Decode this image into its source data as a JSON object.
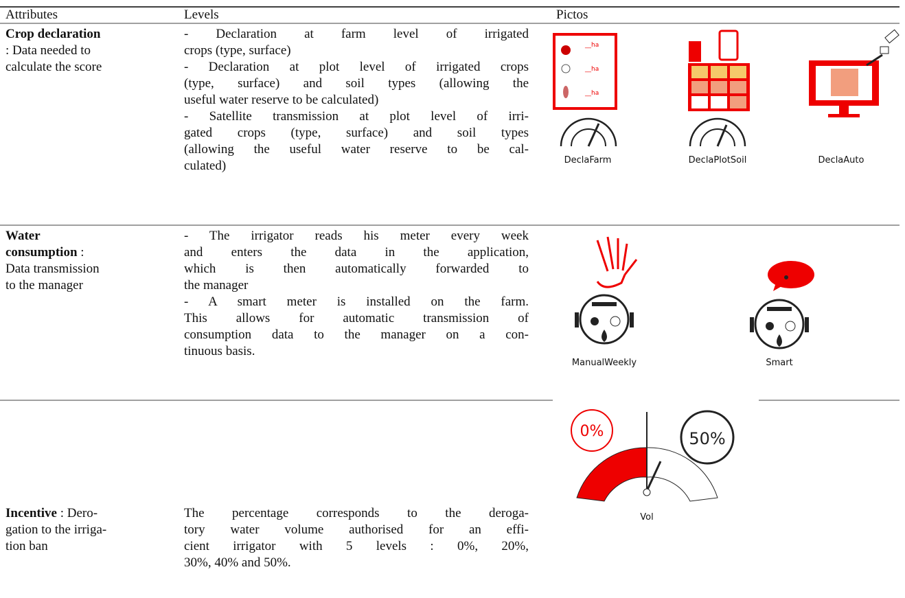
{
  "table": {
    "header": [
      "Attributes",
      "Levels",
      "Pictos"
    ],
    "rows": [
      {
        "attribute": [
          {
            "b": "Crop declaration"
          },
          {
            "t": ": Data needed to"
          },
          {
            "t": "calculate the score"
          }
        ],
        "levels": [
          [
            "- Declaration at farm level of irrigated",
            "crops (type, surface)"
          ],
          [
            "- Declaration at plot level of irrigated crops",
            "(type, surface) and soil types (allowing the",
            "useful water reserve to be calculated)"
          ],
          [
            "- Satellite transmission at plot level of irri-",
            "gated crops (type, surface) and soil types",
            "(allowing the useful water reserve to be cal-",
            "culated)"
          ]
        ],
        "pictos": [
          {
            "label": "DeclaFarm",
            "texts": [
              "__ha",
              "__ha",
              "__ha"
            ]
          },
          {
            "label": "DeclaPlotSoil"
          },
          {
            "label": "DeclaAuto"
          }
        ]
      },
      {
        "attribute": [
          {
            "b": "Water"
          },
          {
            "b": "consumption",
            "t": " :"
          },
          {
            "t": "Data transmission"
          },
          {
            "t": "to the manager"
          }
        ],
        "levels": [
          [
            "- The irrigator reads his meter every week",
            "and enters the data in the application,",
            "which is then automatically forwarded to",
            "the manager"
          ],
          [
            "- A smart meter is installed on the farm.",
            "This allows for automatic transmission of",
            "consumption data to the manager on a con-",
            "tinuous basis."
          ]
        ],
        "pictos": [
          {
            "label": "ManualWeekly"
          },
          {
            "label": "Smart"
          }
        ]
      },
      {
        "attribute": [
          {
            "b": "Incentive",
            "t": " : Dero-"
          },
          {
            "t": "gation to the irriga-"
          },
          {
            "t": "tion ban"
          }
        ],
        "levels": [
          [
            "The percentage corresponds to the deroga-",
            "tory water volume authorised for an effi-",
            "cient irrigator with 5 levels : 0%, 20%,",
            "30%, 40% and 50%."
          ]
        ],
        "pictos": [
          {
            "label": "Vol",
            "texts": [
              "0%",
              "50%"
            ]
          }
        ]
      }
    ]
  }
}
